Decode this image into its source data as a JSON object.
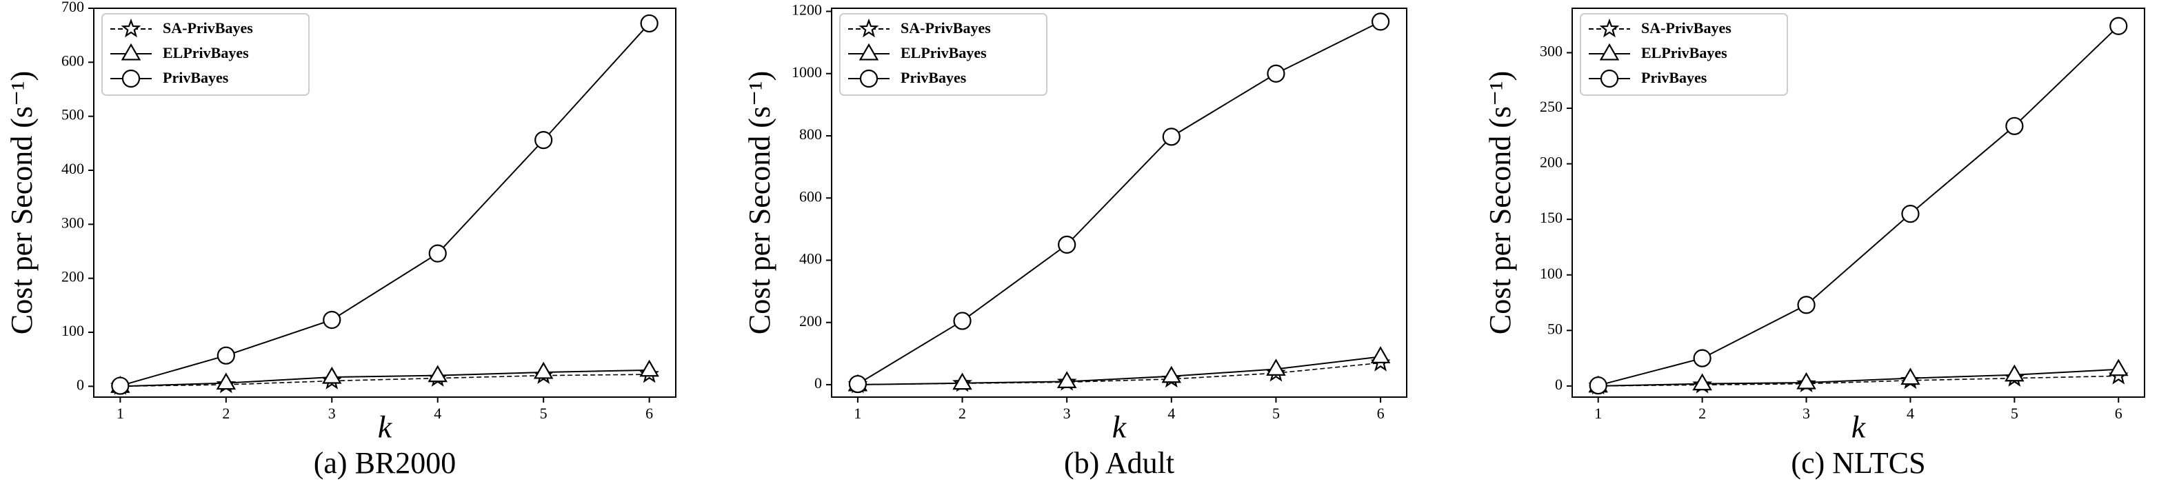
{
  "chart_data": [
    {
      "type": "line",
      "title": "(a) BR2000",
      "x_label": "k",
      "y_label": "Cost per Second (s⁻¹)",
      "x": [
        1,
        2,
        3,
        4,
        5,
        6
      ],
      "xlim": [
        0.75,
        6.25
      ],
      "xticks": [
        1,
        2,
        3,
        4,
        5,
        6
      ],
      "ylim": [
        -20,
        700
      ],
      "yticks": [
        0,
        100,
        200,
        300,
        400,
        500,
        600,
        700
      ],
      "legend": "upper left",
      "series": [
        {
          "name": "SA-PrivBayes",
          "color": "#000000",
          "dash": true,
          "marker": "star",
          "values": [
            0,
            3,
            10,
            15,
            20,
            22
          ]
        },
        {
          "name": "ELPrivBayes",
          "color": "#000000",
          "dash": false,
          "marker": "triangle",
          "values": [
            0,
            6,
            17,
            20,
            26,
            30
          ]
        },
        {
          "name": "PrivBayes",
          "color": "#000000",
          "dash": false,
          "marker": "circle",
          "values": [
            1,
            57,
            123,
            246,
            456,
            672
          ]
        }
      ]
    },
    {
      "type": "line",
      "title": "(b) Adult",
      "x_label": "k",
      "y_label": "Cost per Second (s⁻¹)",
      "x": [
        1,
        2,
        3,
        4,
        5,
        6
      ],
      "xlim": [
        0.75,
        6.25
      ],
      "xticks": [
        1,
        2,
        3,
        4,
        5,
        6
      ],
      "ylim": [
        -40,
        1210
      ],
      "yticks": [
        0,
        200,
        400,
        600,
        800,
        1000,
        1200
      ],
      "legend": "upper left",
      "series": [
        {
          "name": "SA-PrivBayes",
          "color": "#000000",
          "dash": true,
          "marker": "star",
          "values": [
            0,
            4,
            8,
            18,
            37,
            70
          ]
        },
        {
          "name": "ELPrivBayes",
          "color": "#000000",
          "dash": false,
          "marker": "triangle",
          "values": [
            0,
            5,
            10,
            27,
            50,
            90
          ]
        },
        {
          "name": "PrivBayes",
          "color": "#000000",
          "dash": false,
          "marker": "circle",
          "values": [
            2,
            205,
            450,
            797,
            1000,
            1167
          ]
        }
      ]
    },
    {
      "type": "line",
      "title": "(c) NLTCS",
      "x_label": "k",
      "y_label": "Cost per Second (s⁻¹)",
      "x": [
        1,
        2,
        3,
        4,
        5,
        6
      ],
      "xlim": [
        0.75,
        6.25
      ],
      "xticks": [
        1,
        2,
        3,
        4,
        5,
        6
      ],
      "ylim": [
        -10,
        340
      ],
      "yticks": [
        0,
        50,
        100,
        150,
        200,
        250,
        300
      ],
      "legend": "upper left",
      "series": [
        {
          "name": "SA-PrivBayes",
          "color": "#000000",
          "dash": true,
          "marker": "star",
          "values": [
            0,
            1,
            2,
            5,
            7,
            9
          ]
        },
        {
          "name": "ELPrivBayes",
          "color": "#000000",
          "dash": false,
          "marker": "triangle",
          "values": [
            0,
            2,
            3,
            7,
            10,
            15
          ]
        },
        {
          "name": "PrivBayes",
          "color": "#000000",
          "dash": false,
          "marker": "circle",
          "values": [
            0.5,
            25,
            73,
            155,
            234,
            324
          ]
        }
      ]
    }
  ]
}
